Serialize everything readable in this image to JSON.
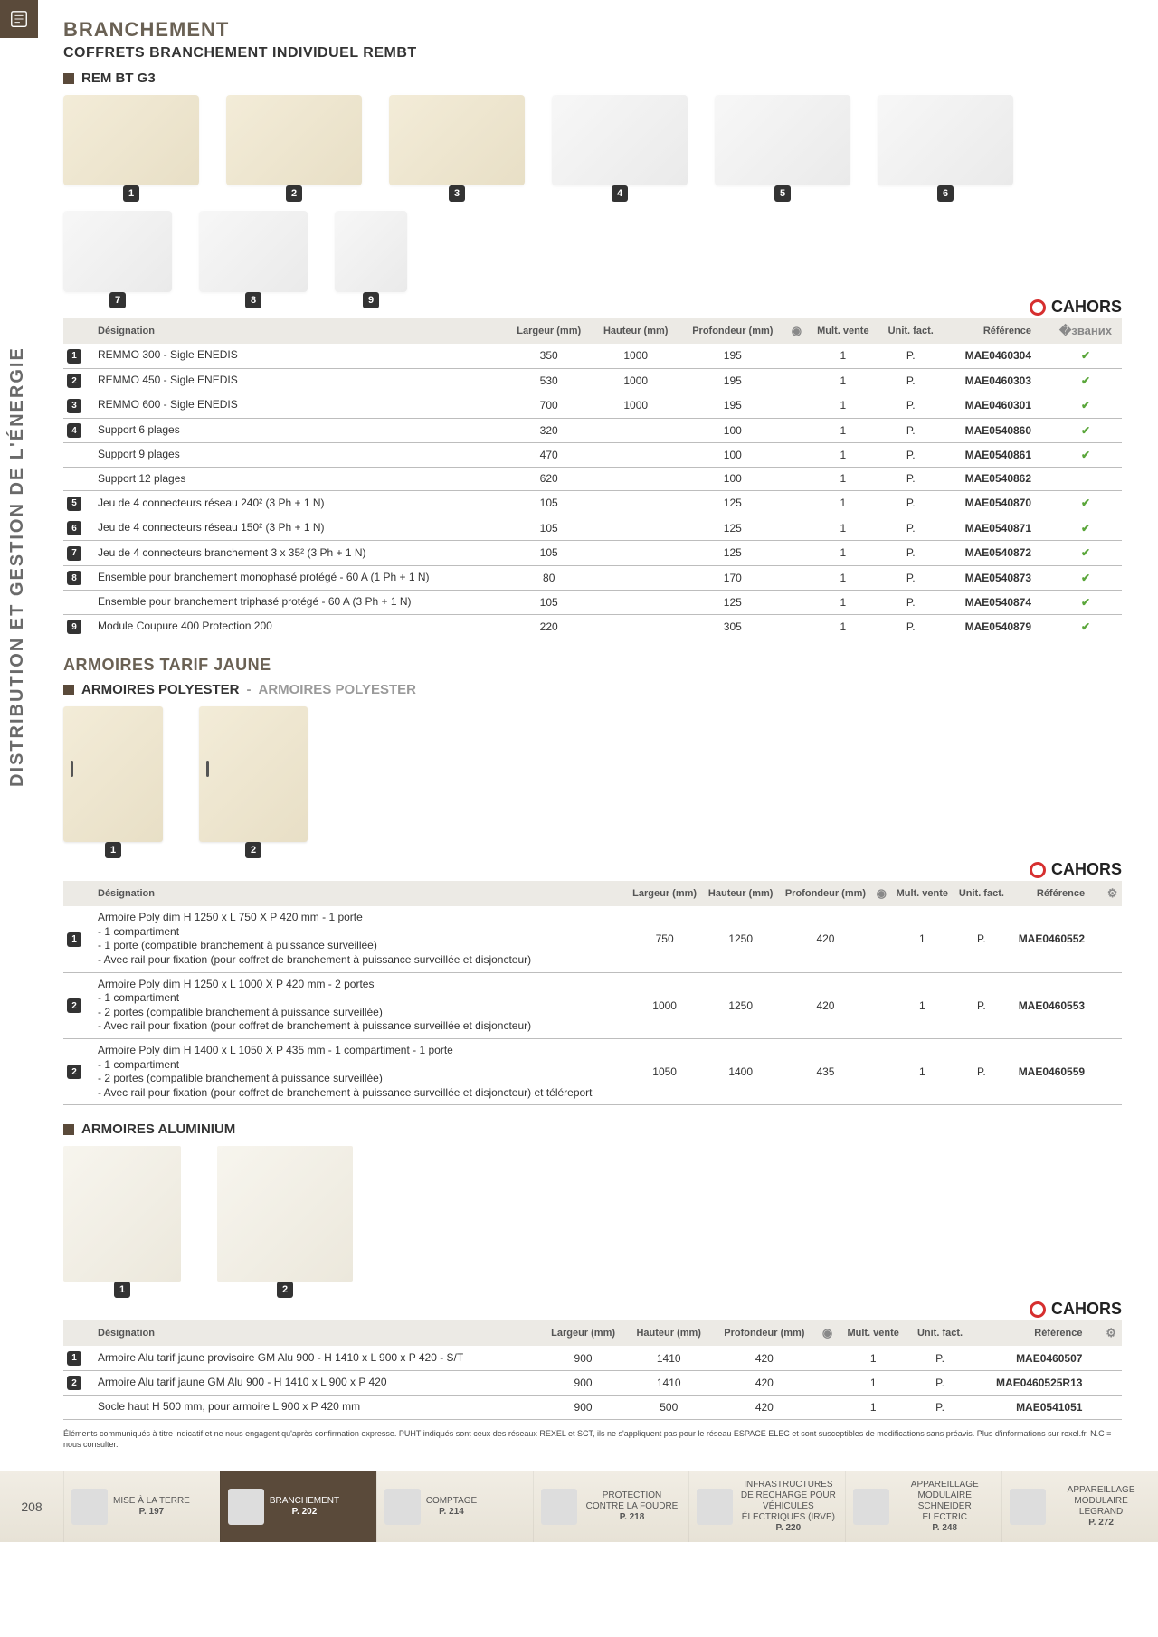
{
  "sideText": "DISTRIBUTION ET GESTION DE L'ÉNERGIE",
  "pageNumber": "208",
  "h1": "BRANCHEMENT",
  "h2": "COFFRETS BRANCHEMENT INDIVIDUEL REMBT",
  "sub1": "REM BT G3",
  "brand": "CAHORS",
  "headers": {
    "des": "Désignation",
    "larg": "Largeur (mm)",
    "haut": "Hauteur (mm)",
    "prof": "Profondeur (mm)",
    "mult": "Mult. vente",
    "unit": "Unit. fact.",
    "ref": "Référence"
  },
  "t1": [
    {
      "n": "1",
      "des": "REMMO 300 - Sigle ENEDIS",
      "l": "350",
      "h": "1000",
      "p": "195",
      "m": "1",
      "u": "P.",
      "ref": "MAE0460304",
      "ok": true
    },
    {
      "n": "2",
      "des": "REMMO 450 - Sigle ENEDIS",
      "l": "530",
      "h": "1000",
      "p": "195",
      "m": "1",
      "u": "P.",
      "ref": "MAE0460303",
      "ok": true
    },
    {
      "n": "3",
      "des": "REMMO 600 - Sigle ENEDIS",
      "l": "700",
      "h": "1000",
      "p": "195",
      "m": "1",
      "u": "P.",
      "ref": "MAE0460301",
      "ok": true
    },
    {
      "n": "4",
      "des": "Support 6 plages",
      "l": "320",
      "h": "",
      "p": "100",
      "m": "1",
      "u": "P.",
      "ref": "MAE0540860",
      "ok": true
    },
    {
      "n": "",
      "des": "Support 9 plages",
      "l": "470",
      "h": "",
      "p": "100",
      "m": "1",
      "u": "P.",
      "ref": "MAE0540861",
      "ok": true
    },
    {
      "n": "",
      "des": "Support 12 plages",
      "l": "620",
      "h": "",
      "p": "100",
      "m": "1",
      "u": "P.",
      "ref": "MAE0540862",
      "ok": false
    },
    {
      "n": "5",
      "des": "Jeu de 4 connecteurs réseau 240² (3 Ph + 1 N)",
      "l": "105",
      "h": "",
      "p": "125",
      "m": "1",
      "u": "P.",
      "ref": "MAE0540870",
      "ok": true
    },
    {
      "n": "6",
      "des": "Jeu de 4 connecteurs réseau 150² (3 Ph + 1 N)",
      "l": "105",
      "h": "",
      "p": "125",
      "m": "1",
      "u": "P.",
      "ref": "MAE0540871",
      "ok": true
    },
    {
      "n": "7",
      "des": "Jeu de 4 connecteurs branchement 3 x 35² (3 Ph + 1 N)",
      "l": "105",
      "h": "",
      "p": "125",
      "m": "1",
      "u": "P.",
      "ref": "MAE0540872",
      "ok": true
    },
    {
      "n": "8",
      "des": "Ensemble pour branchement monophasé protégé - 60 A (1 Ph + 1 N)",
      "l": "80",
      "h": "",
      "p": "170",
      "m": "1",
      "u": "P.",
      "ref": "MAE0540873",
      "ok": true
    },
    {
      "n": "",
      "des": "Ensemble pour branchement triphasé protégé - 60 A (3 Ph + 1 N)",
      "l": "105",
      "h": "",
      "p": "125",
      "m": "1",
      "u": "P.",
      "ref": "MAE0540874",
      "ok": true
    },
    {
      "n": "9",
      "des": "Module Coupure 400 Protection 200",
      "l": "220",
      "h": "",
      "p": "305",
      "m": "1",
      "u": "P.",
      "ref": "MAE0540879",
      "ok": true
    }
  ],
  "sec2": "ARMOIRES TARIF JAUNE",
  "sub2a": "ARMOIRES POLYESTER",
  "sub2b": "ARMOIRES POLYESTER",
  "t2": [
    {
      "n": "1",
      "des": "Armoire Poly dim H 1250 x L 750 X P 420 mm - 1 porte\n- 1 compartiment\n- 1 porte (compatible branchement à puissance surveillée)\n- Avec rail pour fixation (pour coffret de branchement à puissance surveillée et disjoncteur)",
      "l": "750",
      "h": "1250",
      "p": "420",
      "m": "1",
      "u": "P.",
      "ref": "MAE0460552"
    },
    {
      "n": "2",
      "des": "Armoire Poly dim H 1250 x L 1000 X P 420 mm - 2 portes\n- 1 compartiment\n- 2 portes (compatible branchement à puissance surveillée)\n- Avec rail pour fixation (pour coffret de branchement à puissance surveillée et disjoncteur)",
      "l": "1000",
      "h": "1250",
      "p": "420",
      "m": "1",
      "u": "P.",
      "ref": "MAE0460553"
    },
    {
      "n": "2",
      "des": "Armoire Poly dim H 1400 x L 1050 X P 435 mm - 1 compartiment - 1 porte\n- 1 compartiment\n- 2 portes (compatible branchement à puissance surveillée)\n- Avec rail pour fixation (pour coffret de branchement à puissance surveillée et disjoncteur) et téléreport",
      "l": "1050",
      "h": "1400",
      "p": "435",
      "m": "1",
      "u": "P.",
      "ref": "MAE0460559"
    }
  ],
  "sub3": "ARMOIRES ALUMINIUM",
  "t3": [
    {
      "n": "1",
      "des": "Armoire Alu tarif jaune provisoire GM Alu 900  - H 1410 x L 900 x P 420 - S/T",
      "l": "900",
      "h": "1410",
      "p": "420",
      "m": "1",
      "u": "P.",
      "ref": "MAE0460507"
    },
    {
      "n": "2",
      "des": "Armoire Alu tarif jaune GM Alu 900  - H 1410 x L 900 x P 420",
      "l": "900",
      "h": "1410",
      "p": "420",
      "m": "1",
      "u": "P.",
      "ref": "MAE0460525R13"
    },
    {
      "n": "",
      "des": "Socle haut H 500 mm, pour armoire L 900 x P 420 mm",
      "l": "900",
      "h": "500",
      "p": "420",
      "m": "1",
      "u": "P.",
      "ref": "MAE0541051"
    }
  ],
  "legal": "Éléments communiqués à titre indicatif et ne nous engagent qu'après confirmation expresse. PUHT indiqués sont ceux des réseaux REXEL et SCT, ils ne s'appliquent pas pour le réseau ESPACE ELEC et sont susceptibles de modifications sans préavis. Plus d'informations sur rexel.fr. N.C = nous consulter.",
  "nav": [
    {
      "label": "MISE À LA TERRE",
      "page": "P. 197"
    },
    {
      "label": "BRANCHEMENT",
      "page": "P. 202",
      "active": true
    },
    {
      "label": "COMPTAGE",
      "page": "P. 214"
    },
    {
      "label": "PROTECTION CONTRE LA FOUDRE",
      "page": "P. 218"
    },
    {
      "label": "INFRASTRUCTURES DE RECHARGE POUR VÉHICULES ÉLECTRIQUES (IRVE)",
      "page": "P. 220"
    },
    {
      "label": "APPAREILLAGE MODULAIRE SCHNEIDER ELECTRIC",
      "page": "P. 248"
    },
    {
      "label": "APPAREILLAGE MODULAIRE LEGRAND",
      "page": "P. 272"
    }
  ]
}
